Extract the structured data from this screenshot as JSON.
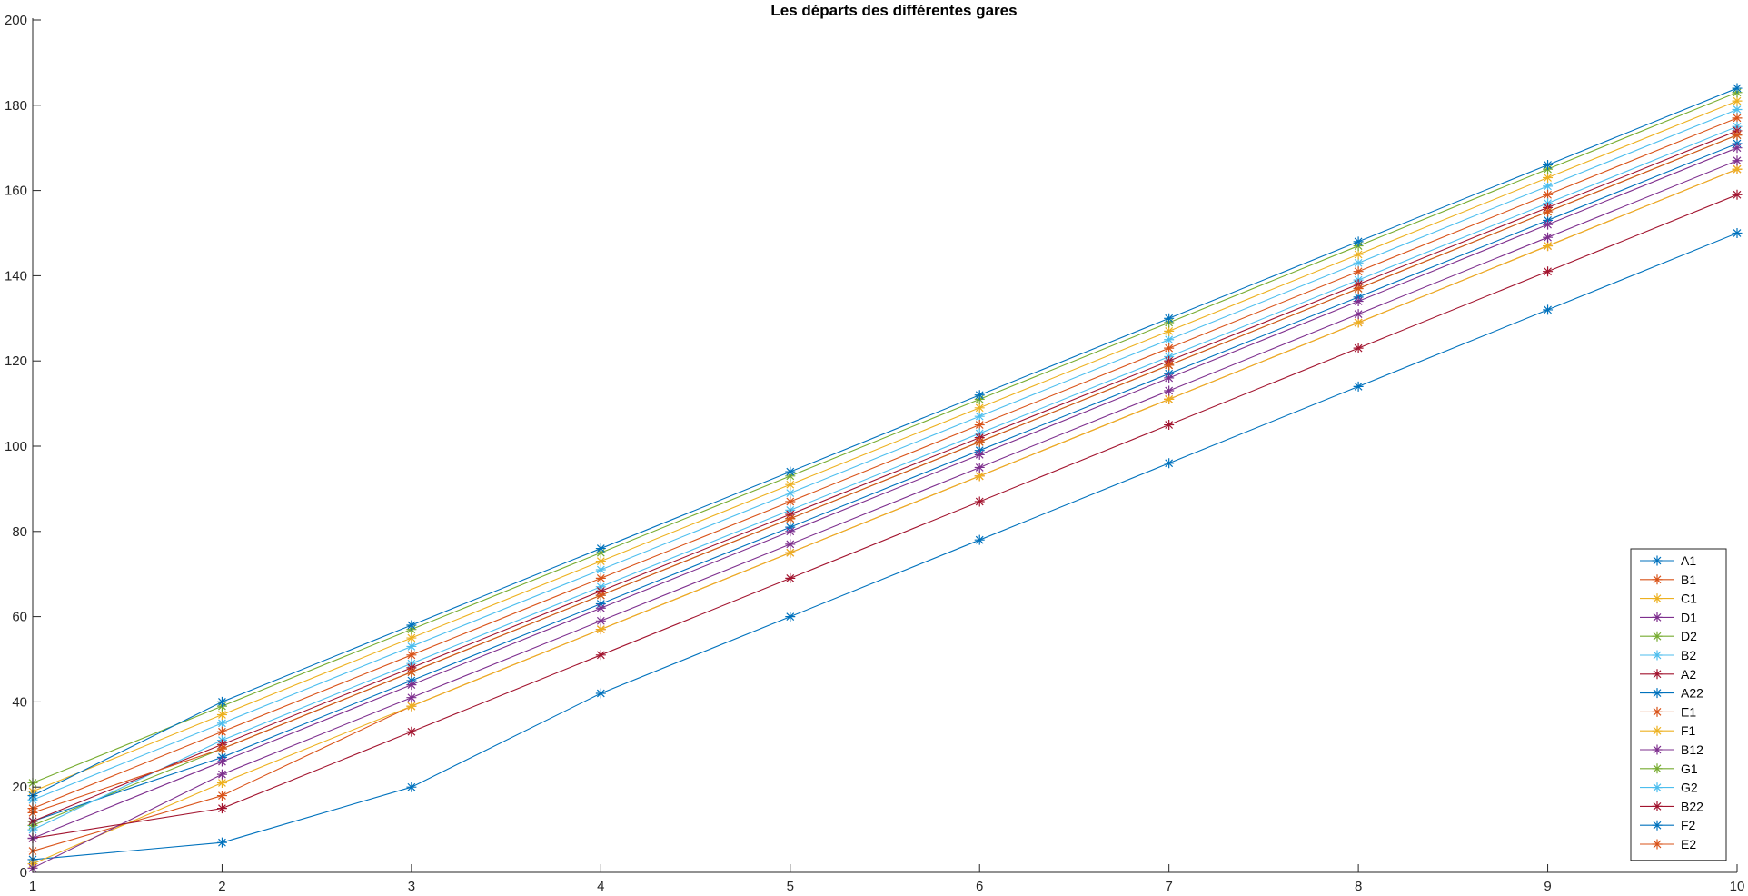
{
  "chart_data": {
    "type": "line",
    "title": "Les départs des différentes gares",
    "xlabel": "",
    "ylabel": "",
    "x": [
      1,
      2,
      3,
      4,
      5,
      6,
      7,
      8,
      9,
      10
    ],
    "xlim": [
      1,
      10
    ],
    "ylim": [
      0,
      200
    ],
    "xticks": [
      1,
      2,
      3,
      4,
      5,
      6,
      7,
      8,
      9,
      10
    ],
    "yticks": [
      0,
      20,
      40,
      60,
      80,
      100,
      120,
      140,
      160,
      180,
      200
    ],
    "marker": "asterisk",
    "grid": false,
    "legend_position": "bottom-right",
    "series": [
      {
        "name": "A1",
        "color": "#0072BD",
        "values": [
          3,
          7,
          20,
          42,
          60,
          78,
          96,
          114,
          132,
          150
        ]
      },
      {
        "name": "B1",
        "color": "#D95319",
        "values": [
          5,
          18,
          39,
          57,
          75,
          93,
          111,
          129,
          147,
          165
        ]
      },
      {
        "name": "C1",
        "color": "#EDB120",
        "values": [
          2,
          21,
          39,
          57,
          75,
          93,
          111,
          129,
          147,
          165
        ]
      },
      {
        "name": "D1",
        "color": "#7E2F8E",
        "values": [
          1,
          23,
          41,
          59,
          77,
          95,
          113,
          131,
          149,
          167
        ]
      },
      {
        "name": "D2",
        "color": "#77AC30",
        "values": [
          11,
          29,
          47,
          65,
          83,
          101,
          119,
          137,
          155,
          173
        ]
      },
      {
        "name": "B2",
        "color": "#4DBEEE",
        "values": [
          17,
          35,
          53,
          71,
          89,
          107,
          125,
          143,
          161,
          179
        ]
      },
      {
        "name": "A2",
        "color": "#A2142F",
        "values": [
          8,
          15,
          33,
          51,
          69,
          87,
          105,
          123,
          141,
          159
        ]
      },
      {
        "name": "A22",
        "color": "#0072BD",
        "values": [
          12,
          27,
          45,
          63,
          81,
          99,
          117,
          135,
          153,
          171
        ]
      },
      {
        "name": "E1",
        "color": "#D95319",
        "values": [
          15,
          33,
          51,
          69,
          87,
          105,
          123,
          141,
          159,
          177
        ]
      },
      {
        "name": "F1",
        "color": "#EDB120",
        "values": [
          19,
          37,
          55,
          73,
          91,
          109,
          127,
          145,
          163,
          181
        ]
      },
      {
        "name": "B12",
        "color": "#7E2F8E",
        "values": [
          8,
          26,
          44,
          62,
          80,
          98,
          116,
          134,
          152,
          170
        ]
      },
      {
        "name": "G1",
        "color": "#77AC30",
        "values": [
          21,
          39,
          57,
          75,
          93,
          111,
          129,
          147,
          165,
          183
        ]
      },
      {
        "name": "G2",
        "color": "#4DBEEE",
        "values": [
          10,
          31,
          49,
          67,
          85,
          103,
          121,
          139,
          157,
          175
        ]
      },
      {
        "name": "B22",
        "color": "#A2142F",
        "values": [
          12,
          30,
          48,
          66,
          84,
          102,
          120,
          138,
          156,
          174
        ]
      },
      {
        "name": "F2",
        "color": "#0072BD",
        "values": [
          18,
          40,
          58,
          76,
          94,
          112,
          130,
          148,
          166,
          184
        ]
      },
      {
        "name": "E2",
        "color": "#D95319",
        "values": [
          14,
          29,
          47,
          65,
          83,
          101,
          119,
          137,
          155,
          173
        ]
      }
    ]
  }
}
